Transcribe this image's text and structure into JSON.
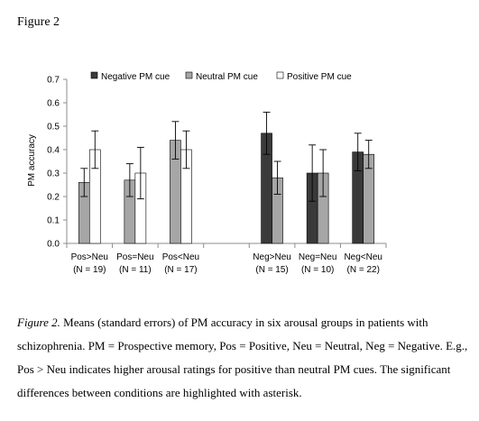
{
  "figure_label": "Figure 2",
  "caption": {
    "prefix": "Figure 2.",
    "text": "Means (standard errors) of PM accuracy in six arousal groups in patients with schizophrenia. PM = Prospective memory, Pos = Positive, Neu = Neutral, Neg = Negative. E.g., Pos > Neu indicates higher arousal ratings for positive than neutral PM cues. The significant differences between conditions are highlighted with asterisk."
  },
  "colors": {
    "negative": "#3a3a3a",
    "neutral": "#a6a6a6",
    "positive": "#ffffff",
    "axis": "#8c8c8c",
    "stroke": "#000000"
  },
  "chart_data": {
    "type": "bar",
    "ylabel": "PM accuracy",
    "ylim": [
      0,
      0.7
    ],
    "yticks": [
      "0.0",
      "0.1",
      "0.2",
      "0.3",
      "0.4",
      "0.5",
      "0.6",
      "0.7"
    ],
    "grid": false,
    "legend_position": "top",
    "categories": [
      {
        "line1": "Pos>Neu",
        "line2": "(N = 19)"
      },
      {
        "line1": "Pos=Neu",
        "line2": "(N = 11)"
      },
      {
        "line1": "Pos<Neu",
        "line2": "(N = 17)"
      },
      {
        "line1": "",
        "line2": ""
      },
      {
        "line1": "Neg>Neu",
        "line2": "(N = 15)"
      },
      {
        "line1": "Neg=Neu",
        "line2": "(N = 10)"
      },
      {
        "line1": "Neg<Neu",
        "line2": "(N = 22)"
      }
    ],
    "series": [
      {
        "name": "Negative PM cue",
        "key": "negative",
        "values": [
          null,
          null,
          null,
          null,
          0.47,
          0.3,
          0.39
        ],
        "errors": [
          null,
          null,
          null,
          null,
          0.09,
          0.12,
          0.08
        ]
      },
      {
        "name": "Neutral PM cue",
        "key": "neutral",
        "values": [
          0.26,
          0.27,
          0.44,
          null,
          0.28,
          0.3,
          0.38
        ],
        "errors": [
          0.06,
          0.07,
          0.08,
          null,
          0.07,
          0.1,
          0.06
        ]
      },
      {
        "name": "Positive PM cue",
        "key": "positive",
        "values": [
          0.4,
          0.3,
          0.4,
          null,
          null,
          null,
          null
        ],
        "errors": [
          0.08,
          0.11,
          0.08,
          null,
          null,
          null,
          null
        ]
      }
    ]
  }
}
